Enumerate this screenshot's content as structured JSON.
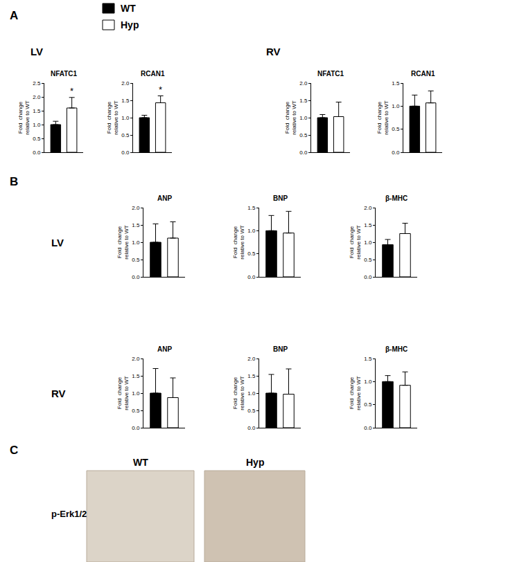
{
  "panels": [
    {
      "label": "A",
      "groups": [
        "LV",
        "RV"
      ]
    },
    {
      "label": "B",
      "groups": [
        "LV",
        "RV"
      ]
    },
    {
      "label": "C",
      "columns": [
        "WT",
        "Hyp"
      ],
      "rows": [
        "p-Erk1/2"
      ]
    }
  ],
  "chart_data": [
    {
      "type": "bar",
      "panel": "A",
      "group": "LV",
      "title": "NFATC1",
      "ylabel": "Fold  change\nrelative to WT",
      "ylim": [
        0,
        2.5
      ],
      "yticks": [
        {
          "value": 0,
          "label": "0.0"
        },
        0.5,
        {
          "value": 1,
          "label": "1.0"
        },
        1.5,
        {
          "value": 2,
          "label": "2.0"
        },
        2.5
      ],
      "grid": false,
      "tick_labels": "y",
      "series": [
        {
          "name": "WT",
          "color": "#000000",
          "values": [
            1.0
          ],
          "errors": [
            0.12
          ]
        },
        {
          "name": "Hyp",
          "color": "#ffffff",
          "values": [
            1.6
          ],
          "errors": [
            0.38
          ]
        }
      ],
      "annotations": [
        {
          "text": "*",
          "series": "Hyp"
        }
      ]
    },
    {
      "type": "bar",
      "panel": "A",
      "group": "LV",
      "title": "RCAN1",
      "ylabel": "Fold  change\nrelative to WT",
      "ylim": [
        0,
        2
      ],
      "yticks": [
        {
          "value": 0,
          "label": "0.0"
        },
        0.5,
        {
          "value": 1,
          "label": "1.0"
        },
        1.5,
        {
          "value": 2,
          "label": "2.0"
        }
      ],
      "grid": false,
      "tick_labels": "y",
      "series": [
        {
          "name": "WT",
          "color": "#000000",
          "values": [
            1.0
          ],
          "errors": [
            0.07
          ]
        },
        {
          "name": "Hyp",
          "color": "#ffffff",
          "values": [
            1.43
          ],
          "errors": [
            0.2
          ]
        }
      ],
      "annotations": [
        {
          "text": "*",
          "series": "Hyp"
        }
      ]
    },
    {
      "type": "bar",
      "panel": "A",
      "group": "RV",
      "title": "NFATC1",
      "ylabel": "Fold  change\nrelative to WT",
      "ylim": [
        0,
        2
      ],
      "yticks": [
        {
          "value": 0,
          "label": "0.0"
        },
        0.5,
        {
          "value": 1,
          "label": "1.0"
        },
        1.5,
        {
          "value": 2,
          "label": "2.0"
        }
      ],
      "grid": false,
      "tick_labels": "y",
      "series": [
        {
          "name": "WT",
          "color": "#000000",
          "values": [
            1.0
          ],
          "errors": [
            0.09
          ]
        },
        {
          "name": "Hyp",
          "color": "#ffffff",
          "values": [
            1.03
          ],
          "errors": [
            0.42
          ]
        }
      ]
    },
    {
      "type": "bar",
      "panel": "A",
      "group": "RV",
      "title": "RCAN1",
      "ylabel": "Fold  change\nrelative to WT",
      "ylim": [
        0,
        1.5
      ],
      "yticks": [
        {
          "value": 0,
          "label": "0.0"
        },
        0.5,
        {
          "value": 1,
          "label": "1.0"
        },
        1.5
      ],
      "grid": false,
      "tick_labels": "y",
      "series": [
        {
          "name": "WT",
          "color": "#000000",
          "values": [
            1.0
          ],
          "errors": [
            0.24
          ]
        },
        {
          "name": "Hyp",
          "color": "#ffffff",
          "values": [
            1.07
          ],
          "errors": [
            0.26
          ]
        }
      ]
    },
    {
      "type": "bar",
      "panel": "B",
      "group": "LV",
      "title": "ANP",
      "ylabel": "Fold  change\nrelative to WT",
      "ylim": [
        0,
        2
      ],
      "yticks": [
        {
          "value": 0,
          "label": "0.0"
        },
        0.5,
        {
          "value": 1,
          "label": "1.0"
        },
        1.5,
        {
          "value": 2,
          "label": "2.0"
        }
      ],
      "grid": false,
      "tick_labels": "y",
      "series": [
        {
          "name": "WT",
          "color": "#000000",
          "values": [
            1.0
          ],
          "errors": [
            0.53
          ]
        },
        {
          "name": "Hyp",
          "color": "#ffffff",
          "values": [
            1.12
          ],
          "errors": [
            0.47
          ]
        }
      ]
    },
    {
      "type": "bar",
      "panel": "B",
      "group": "LV",
      "title": "BNP",
      "ylabel": "Fold  change\nrelative to WT",
      "ylim": [
        0,
        1.5
      ],
      "yticks": [
        {
          "value": 0,
          "label": "0.0"
        },
        0.5,
        {
          "value": 1,
          "label": "1.0"
        },
        1.5
      ],
      "grid": false,
      "tick_labels": "y",
      "series": [
        {
          "name": "WT",
          "color": "#000000",
          "values": [
            1.0
          ],
          "errors": [
            0.33
          ]
        },
        {
          "name": "Hyp",
          "color": "#ffffff",
          "values": [
            0.95
          ],
          "errors": [
            0.47
          ]
        }
      ]
    },
    {
      "type": "bar",
      "panel": "B",
      "group": "LV",
      "title": "β-MHC",
      "ylabel": "Fold  change\nrelative to WT",
      "ylim": [
        0,
        2
      ],
      "yticks": [
        {
          "value": 0,
          "label": "0.0"
        },
        0.5,
        {
          "value": 1,
          "label": "1.0"
        },
        1.5,
        {
          "value": 2,
          "label": "2.0"
        }
      ],
      "grid": false,
      "tick_labels": "y",
      "series": [
        {
          "name": "WT",
          "color": "#000000",
          "values": [
            0.93
          ],
          "errors": [
            0.15
          ]
        },
        {
          "name": "Hyp",
          "color": "#ffffff",
          "values": [
            1.25
          ],
          "errors": [
            0.3
          ]
        }
      ]
    },
    {
      "type": "bar",
      "panel": "B",
      "group": "RV",
      "title": "ANP",
      "ylabel": "Fold  change\nrelative to WT",
      "ylim": [
        0,
        2
      ],
      "yticks": [
        {
          "value": 0,
          "label": "0.0"
        },
        0.5,
        {
          "value": 1,
          "label": "1.0"
        },
        1.5,
        {
          "value": 2,
          "label": "2.0"
        }
      ],
      "grid": false,
      "tick_labels": "y",
      "series": [
        {
          "name": "WT",
          "color": "#000000",
          "values": [
            1.0
          ],
          "errors": [
            0.71
          ]
        },
        {
          "name": "Hyp",
          "color": "#ffffff",
          "values": [
            0.87
          ],
          "errors": [
            0.57
          ]
        }
      ]
    },
    {
      "type": "bar",
      "panel": "B",
      "group": "RV",
      "title": "BNP",
      "ylabel": "Fold  change\nrelative to WT",
      "ylim": [
        0,
        2
      ],
      "yticks": [
        {
          "value": 0,
          "label": "0.0"
        },
        0.5,
        {
          "value": 1,
          "label": "1.0"
        },
        1.5,
        {
          "value": 2,
          "label": "2.0"
        }
      ],
      "grid": false,
      "tick_labels": "y",
      "series": [
        {
          "name": "WT",
          "color": "#000000",
          "values": [
            1.0
          ],
          "errors": [
            0.54
          ]
        },
        {
          "name": "Hyp",
          "color": "#ffffff",
          "values": [
            0.97
          ],
          "errors": [
            0.73
          ]
        }
      ]
    },
    {
      "type": "bar",
      "panel": "B",
      "group": "RV",
      "title": "β-MHC",
      "ylabel": "Fold  change\nrelative to WT",
      "ylim": [
        0,
        1.5
      ],
      "yticks": [
        {
          "value": 0,
          "label": "0.0"
        },
        0.5,
        {
          "value": 1,
          "label": "1.0"
        },
        1.5
      ],
      "grid": false,
      "tick_labels": "y",
      "series": [
        {
          "name": "WT",
          "color": "#000000",
          "values": [
            1.0
          ],
          "errors": [
            0.13
          ]
        },
        {
          "name": "Hyp",
          "color": "#ffffff",
          "values": [
            0.92
          ],
          "errors": [
            0.29
          ]
        }
      ]
    }
  ]
}
